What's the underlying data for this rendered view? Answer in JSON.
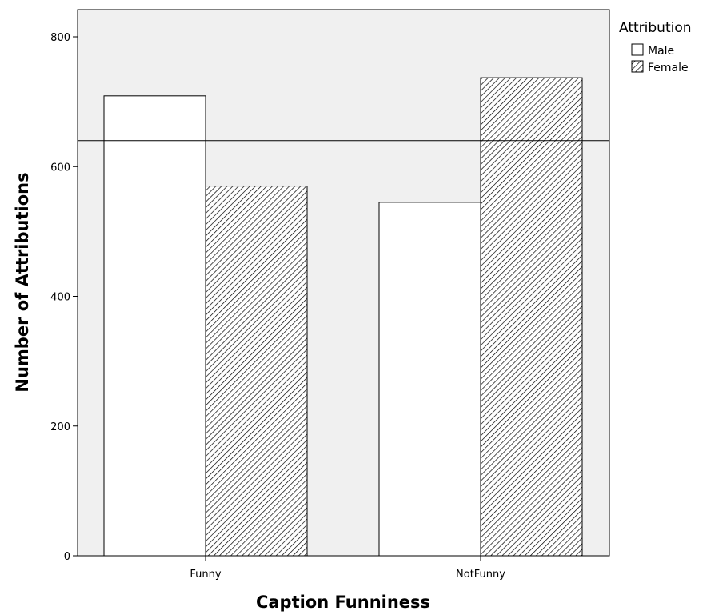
{
  "chart_data": {
    "type": "bar",
    "title": "",
    "xlabel": "Caption Funniness",
    "ylabel": "Number of Attributions",
    "categories": [
      "Funny",
      "NotFunny"
    ],
    "series": [
      {
        "name": "Male",
        "values": [
          709,
          545
        ],
        "fill": "white"
      },
      {
        "name": "Female",
        "values": [
          570,
          737
        ],
        "fill": "hatched"
      }
    ],
    "reference_line": 640,
    "ylim": [
      0,
      800
    ],
    "yticks": [
      0,
      200,
      400,
      600,
      800
    ],
    "ytick_labels": [
      "0",
      "200",
      "400",
      "600",
      "800"
    ],
    "grid": false,
    "legend": {
      "title": "Attribution",
      "position": "top-right outside"
    },
    "colors": {
      "plot_background": "#f0f0f0",
      "bar_fill": "#ffffff",
      "stroke": "#000000"
    }
  }
}
